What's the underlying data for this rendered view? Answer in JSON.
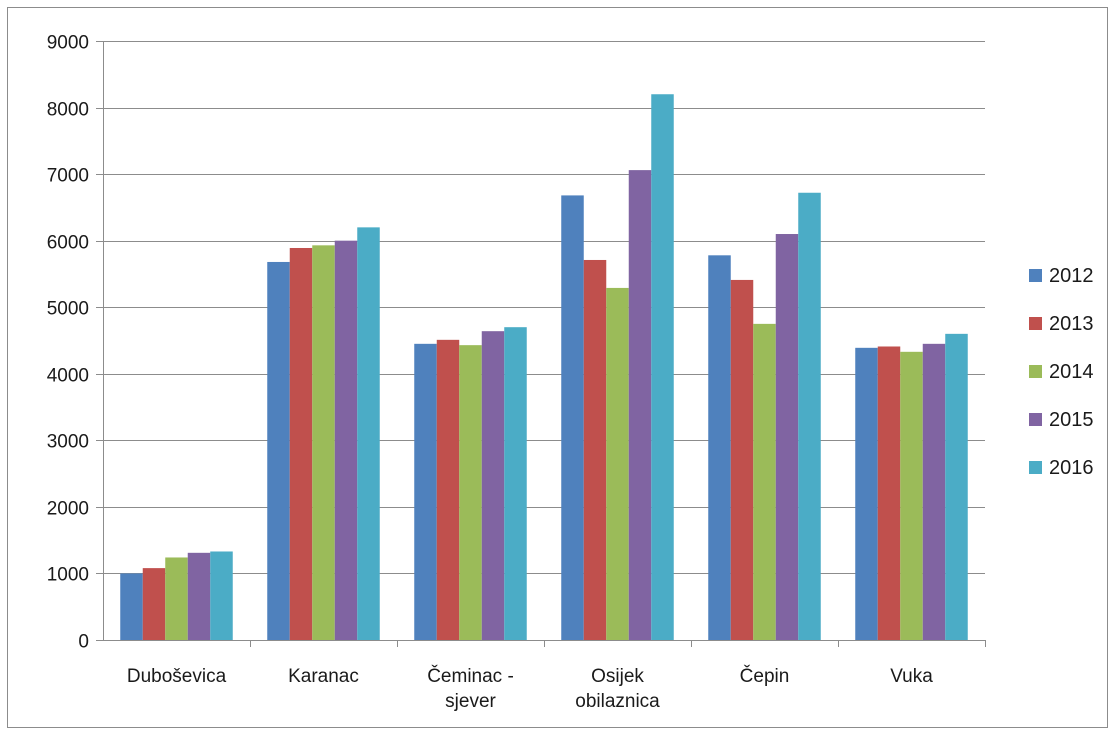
{
  "chart_data": {
    "type": "bar",
    "title": "",
    "xlabel": "",
    "ylabel": "",
    "ylim": [
      0,
      9000
    ],
    "yticks": [
      0,
      1000,
      2000,
      3000,
      4000,
      5000,
      6000,
      7000,
      8000,
      9000
    ],
    "grid": true,
    "legend_position": "right",
    "categories": [
      [
        "Duboševica"
      ],
      [
        "Karanac"
      ],
      [
        "Čeminac -",
        "sjever"
      ],
      [
        "Osijek",
        "obilaznica"
      ],
      [
        "Čepin"
      ],
      [
        "Vuka"
      ]
    ],
    "series": [
      {
        "name": "2012",
        "color": "#4f81bd",
        "values": [
          1000,
          5680,
          4450,
          6680,
          5780,
          4390
        ]
      },
      {
        "name": "2013",
        "color": "#c0504d",
        "values": [
          1080,
          5890,
          4510,
          5710,
          5410,
          4410
        ]
      },
      {
        "name": "2014",
        "color": "#9bbb59",
        "values": [
          1240,
          5930,
          4430,
          5290,
          4750,
          4330
        ]
      },
      {
        "name": "2015",
        "color": "#8064a2",
        "values": [
          1310,
          6000,
          4640,
          7060,
          6100,
          4450
        ]
      },
      {
        "name": "2016",
        "color": "#4bacc6",
        "values": [
          1330,
          6200,
          4700,
          8200,
          6720,
          4600
        ]
      }
    ]
  }
}
